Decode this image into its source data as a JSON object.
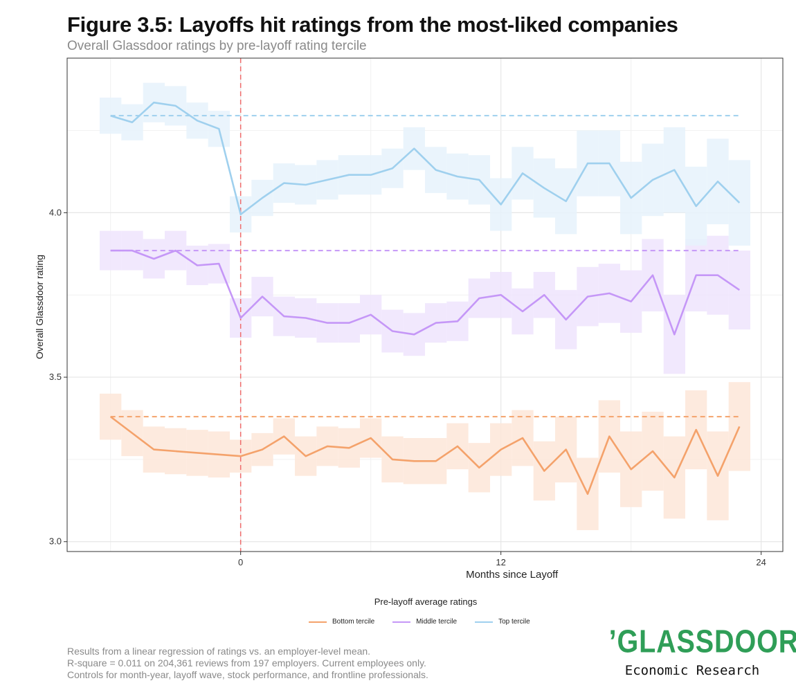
{
  "title": "Figure 3.5: Layoffs hit ratings from the most-liked companies",
  "subtitle": "Overall Glassdoor ratings by pre-layoff rating tercile",
  "legend_title": "Pre-layoff average ratings",
  "footnote": [
    "Results from a linear regression of ratings vs. an employer-level mean.",
    "R-square = 0.011 on 204,361 reviews from 197 employers. Current employees only.",
    "Controls for month-year, layoff wave, stock performance, and frontline professionals."
  ],
  "logo": {
    "wordmark": "’GLASSDOOR’",
    "tm": "™",
    "subtitle": "Economic Research"
  },
  "chart_data": {
    "type": "line",
    "xlabel": "Months since Layoff",
    "ylabel": "Overall Glassdoor rating",
    "xlim": [
      -8,
      25
    ],
    "ylim": [
      2.97,
      4.47
    ],
    "xticks": [
      0,
      12,
      24
    ],
    "yticks": [
      3.0,
      3.5,
      4.0
    ],
    "x": [
      -6,
      -5,
      -4,
      -3,
      -2,
      -1,
      0,
      1,
      2,
      3,
      4,
      5,
      6,
      7,
      8,
      9,
      10,
      11,
      12,
      13,
      14,
      15,
      16,
      17,
      18,
      19,
      20,
      21,
      22,
      23
    ],
    "layoff_marker_x": 0,
    "series": [
      {
        "name": "Bottom tercile",
        "color": "#f4a26b",
        "band_color": "#fde6d8",
        "baseline": 3.38,
        "values": [
          3.38,
          3.33,
          3.28,
          3.275,
          3.27,
          3.265,
          3.26,
          3.28,
          3.32,
          3.26,
          3.29,
          3.285,
          3.315,
          3.25,
          3.245,
          3.245,
          3.29,
          3.225,
          3.28,
          3.315,
          3.215,
          3.28,
          3.145,
          3.32,
          3.22,
          3.275,
          3.195,
          3.34,
          3.2,
          3.35
        ],
        "ci_half": [
          0.07,
          0.07,
          0.07,
          0.07,
          0.07,
          0.07,
          0.05,
          0.05,
          0.055,
          0.06,
          0.06,
          0.06,
          0.06,
          0.07,
          0.07,
          0.07,
          0.07,
          0.075,
          0.08,
          0.085,
          0.09,
          0.1,
          0.11,
          0.11,
          0.115,
          0.12,
          0.125,
          0.12,
          0.135,
          0.135
        ]
      },
      {
        "name": "Middle tercile",
        "color": "#c597f7",
        "band_color": "#efe4fd",
        "baseline": 3.885,
        "values": [
          3.885,
          3.885,
          3.86,
          3.885,
          3.84,
          3.845,
          3.68,
          3.745,
          3.685,
          3.68,
          3.665,
          3.665,
          3.69,
          3.64,
          3.63,
          3.665,
          3.67,
          3.74,
          3.75,
          3.7,
          3.75,
          3.675,
          3.745,
          3.755,
          3.73,
          3.81,
          3.63,
          3.81,
          3.81,
          3.765
        ],
        "ci_half": [
          0.06,
          0.06,
          0.06,
          0.06,
          0.06,
          0.06,
          0.06,
          0.06,
          0.06,
          0.06,
          0.06,
          0.06,
          0.06,
          0.065,
          0.065,
          0.06,
          0.06,
          0.06,
          0.07,
          0.07,
          0.07,
          0.09,
          0.09,
          0.09,
          0.095,
          0.11,
          0.12,
          0.11,
          0.12,
          0.12
        ]
      },
      {
        "name": "Top tercile",
        "color": "#9fd0ee",
        "band_color": "#e6f2fc",
        "baseline": 4.295,
        "values": [
          4.295,
          4.275,
          4.335,
          4.325,
          4.28,
          4.255,
          3.995,
          4.045,
          4.09,
          4.085,
          4.1,
          4.115,
          4.115,
          4.135,
          4.195,
          4.13,
          4.11,
          4.1,
          4.025,
          4.12,
          4.075,
          4.035,
          4.15,
          4.15,
          4.045,
          4.1,
          4.13,
          4.02,
          4.095,
          4.03
        ],
        "ci_half": [
          0.055,
          0.055,
          0.06,
          0.06,
          0.055,
          0.055,
          0.055,
          0.055,
          0.06,
          0.06,
          0.06,
          0.06,
          0.06,
          0.06,
          0.065,
          0.07,
          0.07,
          0.075,
          0.08,
          0.08,
          0.09,
          0.1,
          0.1,
          0.1,
          0.11,
          0.11,
          0.13,
          0.12,
          0.13,
          0.13
        ]
      }
    ]
  }
}
